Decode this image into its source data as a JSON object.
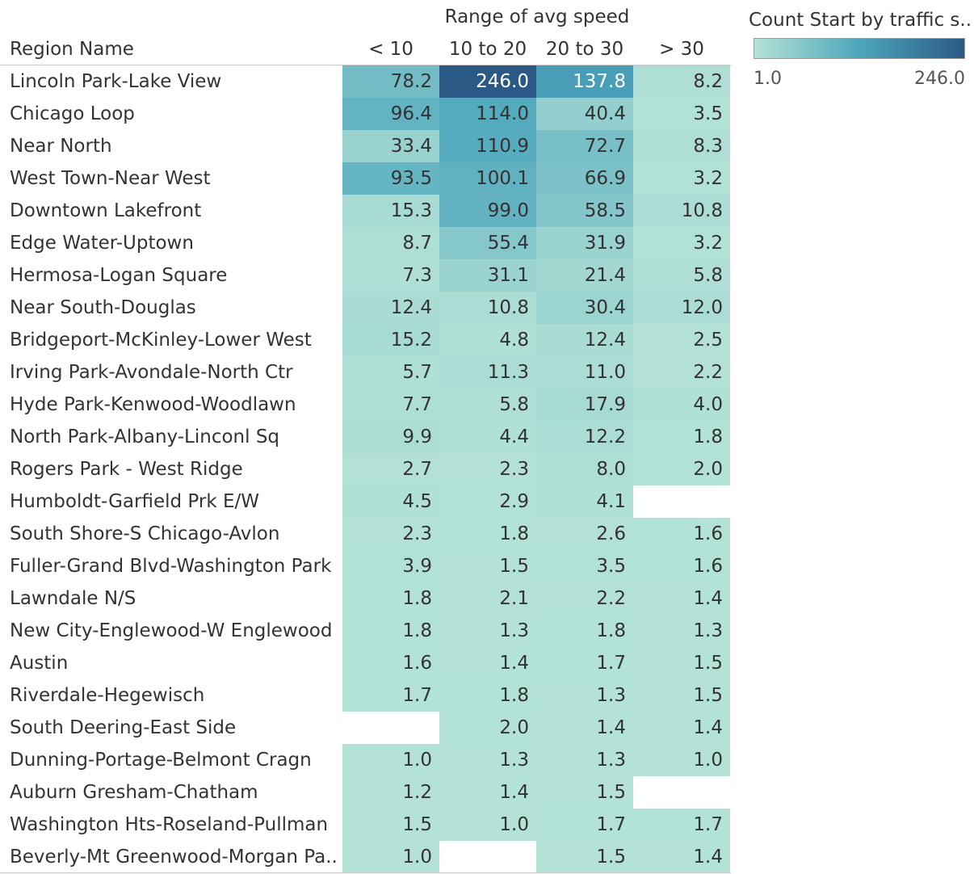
{
  "chart_data": {
    "type": "heatmap",
    "column_group_title": "Range of avg speed",
    "row_header": "Region Name",
    "columns": [
      "< 10",
      "10 to 20",
      "20 to 30",
      "> 30"
    ],
    "rows": [
      {
        "region": "Lincoln Park-Lake View",
        "values": [
          "78.2",
          "246.0",
          "137.8",
          "8.2"
        ]
      },
      {
        "region": "Chicago Loop",
        "values": [
          "96.4",
          "114.0",
          "40.4",
          "3.5"
        ]
      },
      {
        "region": "Near North",
        "values": [
          "33.4",
          "110.9",
          "72.7",
          "8.3"
        ]
      },
      {
        "region": "West Town-Near West",
        "values": [
          "93.5",
          "100.1",
          "66.9",
          "3.2"
        ]
      },
      {
        "region": "Downtown Lakefront",
        "values": [
          "15.3",
          "99.0",
          "58.5",
          "10.8"
        ]
      },
      {
        "region": "Edge Water-Uptown",
        "values": [
          "8.7",
          "55.4",
          "31.9",
          "3.2"
        ]
      },
      {
        "region": "Hermosa-Logan Square",
        "values": [
          "7.3",
          "31.1",
          "21.4",
          "5.8"
        ]
      },
      {
        "region": "Near South-Douglas",
        "values": [
          "12.4",
          "10.8",
          "30.4",
          "12.0"
        ]
      },
      {
        "region": "Bridgeport-McKinley-Lower West",
        "values": [
          "15.2",
          "4.8",
          "12.4",
          "2.5"
        ]
      },
      {
        "region": "Irving Park-Avondale-North Ctr",
        "values": [
          "5.7",
          "11.3",
          "11.0",
          "2.2"
        ]
      },
      {
        "region": "Hyde Park-Kenwood-Woodlawn",
        "values": [
          "7.7",
          "5.8",
          "17.9",
          "4.0"
        ]
      },
      {
        "region": "North Park-Albany-Linconl Sq",
        "values": [
          "9.9",
          "4.4",
          "12.2",
          "1.8"
        ]
      },
      {
        "region": "Rogers Park - West Ridge",
        "values": [
          "2.7",
          "2.3",
          "8.0",
          "2.0"
        ]
      },
      {
        "region": "Humboldt-Garfield Prk E/W",
        "values": [
          "4.5",
          "2.9",
          "4.1",
          null
        ]
      },
      {
        "region": "South Shore-S Chicago-Avlon",
        "values": [
          "2.3",
          "1.8",
          "2.6",
          "1.6"
        ]
      },
      {
        "region": "Fuller-Grand Blvd-Washington Park",
        "values": [
          "3.9",
          "1.5",
          "3.5",
          "1.6"
        ]
      },
      {
        "region": "Lawndale N/S",
        "values": [
          "1.8",
          "2.1",
          "2.2",
          "1.4"
        ]
      },
      {
        "region": "New City-Englewood-W Englewood",
        "values": [
          "1.8",
          "1.3",
          "1.8",
          "1.3"
        ]
      },
      {
        "region": "Austin",
        "values": [
          "1.6",
          "1.4",
          "1.7",
          "1.5"
        ]
      },
      {
        "region": "Riverdale-Hegewisch",
        "values": [
          "1.7",
          "1.8",
          "1.3",
          "1.5"
        ]
      },
      {
        "region": "South Deering-East Side",
        "values": [
          null,
          "2.0",
          "1.4",
          "1.4"
        ]
      },
      {
        "region": "Dunning-Portage-Belmont Cragn",
        "values": [
          "1.0",
          "1.3",
          "1.3",
          "1.0"
        ]
      },
      {
        "region": "Auburn Gresham-Chatham",
        "values": [
          "1.2",
          "1.4",
          "1.5",
          null
        ]
      },
      {
        "region": "Washington Hts-Roseland-Pullman",
        "values": [
          "1.5",
          "1.0",
          "1.7",
          "1.7"
        ]
      },
      {
        "region": "Beverly-Mt Greenwood-Morgan Pa..",
        "values": [
          "1.0",
          null,
          "1.5",
          "1.4"
        ]
      }
    ],
    "legend": {
      "title": "Count Start by traffic s..",
      "min_label": "1.0",
      "max_label": "246.0",
      "min": 1.0,
      "max": 246.0
    },
    "colors": {
      "low": "#b4e2d6",
      "mid": "#4da6bc",
      "high": "#2b5986",
      "grid_line": "#c8c8c8"
    }
  }
}
